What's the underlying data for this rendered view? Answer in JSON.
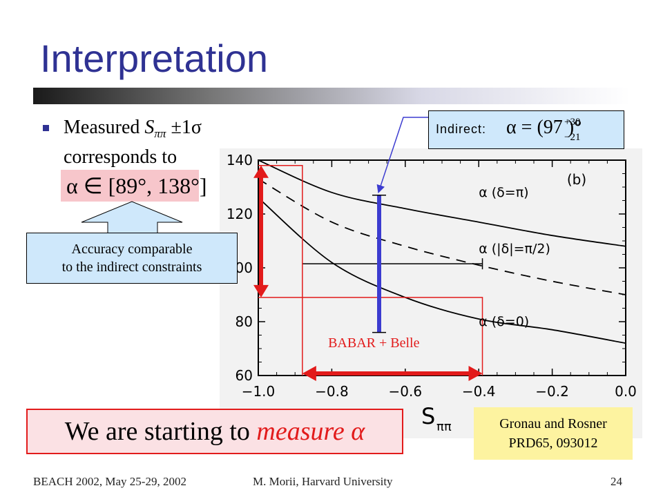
{
  "slide": {
    "title": "Interpretation",
    "bullet": {
      "line1_prefix": "Measured ",
      "symbol": "S",
      "subscript": "ππ",
      "pm": " ±1σ",
      "line2": "corresponds to"
    },
    "range": "α ∈ [89°, 138°]",
    "callout": {
      "line1": "Accuracy comparable",
      "line2": "to the indirect constraints"
    },
    "indirect": {
      "label": "Indirect:",
      "formula": "α = (97   )°",
      "sup": "+30",
      "sub": "−21"
    },
    "measure": {
      "prefix": "We are starting to ",
      "emph": "measure",
      "suffix": " α"
    },
    "reference": {
      "line1": "Gronau and Rosner",
      "line2": "PRD65, 093012"
    },
    "footer": {
      "left": "BEACH 2002, May 25-29, 2002",
      "center": "M. Morii, Harvard University",
      "page": "24"
    },
    "colors": {
      "title": "#2f3293",
      "red": "#e21b1b",
      "blue": "#3c3cd0",
      "callout_bg": "#cfe8fb",
      "range_bg": "#f7c6cb",
      "ref_bg": "#fdf3a0"
    }
  },
  "chart_data": {
    "type": "line",
    "panel_label": "(b)",
    "xlabel": "Sππ",
    "xlim": [
      -1.0,
      0.0
    ],
    "ylim": [
      60,
      140
    ],
    "x_ticks": [
      "−1.0",
      "−0.8",
      "−0.6",
      "−0.4",
      "−0.2",
      "0.0"
    ],
    "y_ticks": [
      "60",
      "80",
      "100",
      "120",
      "140"
    ],
    "series": [
      {
        "name": "α (δ=π)",
        "style": "solid",
        "x": [
          -1.0,
          -0.8,
          -0.6,
          -0.4,
          -0.2,
          0.0
        ],
        "y": [
          140,
          128,
          122,
          117,
          112,
          108
        ]
      },
      {
        "name": "α (|δ|=π/2)",
        "style": "dashed",
        "x": [
          -1.0,
          -0.8,
          -0.6,
          -0.4,
          -0.2,
          0.0
        ],
        "y": [
          133,
          117,
          108,
          101,
          95,
          90
        ]
      },
      {
        "name": "α (δ=0)",
        "style": "solid",
        "x": [
          -1.0,
          -0.8,
          -0.6,
          -0.4,
          -0.2,
          0.0
        ],
        "y": [
          126,
          102,
          89,
          81,
          77,
          72
        ]
      }
    ],
    "annotations": {
      "measurement_label": "BABAR + Belle",
      "s_central": -0.62,
      "s_range": [
        -0.88,
        -0.39
      ],
      "alpha_range": [
        89,
        138
      ],
      "indirect_alpha": {
        "value": 97,
        "plus": 30,
        "minus": 21,
        "min": 76,
        "max": 127
      }
    }
  }
}
